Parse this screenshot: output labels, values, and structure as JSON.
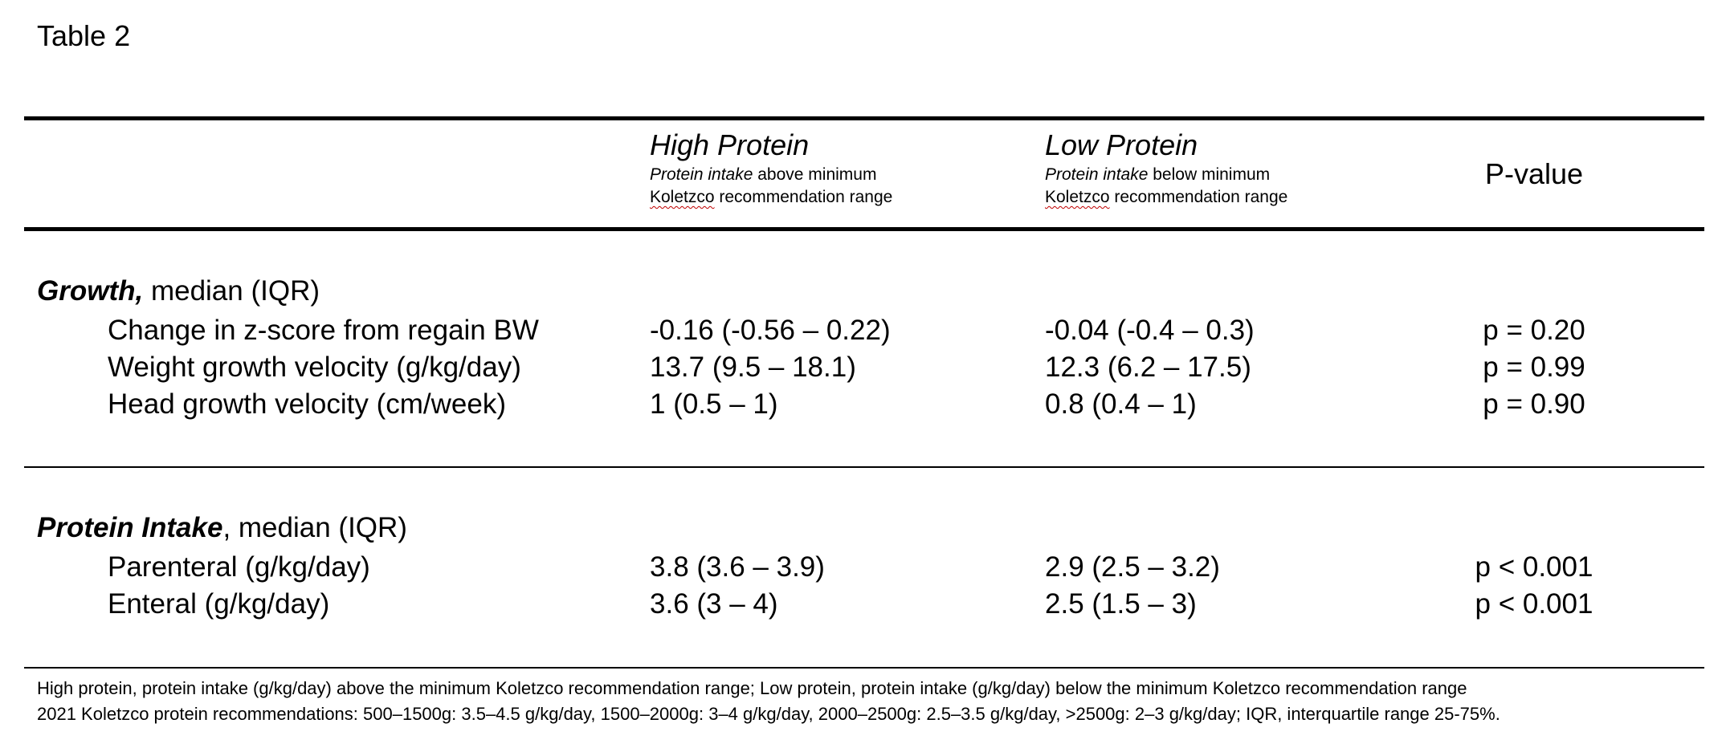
{
  "title": "Table 2",
  "columns": {
    "high": {
      "title": "High Protein",
      "sub_italic": "Protein intake",
      "sub_rest": " above minimum",
      "sub_line2_word": "Koletzco",
      "sub_line2_rest": " recommendation range"
    },
    "low": {
      "title": "Low Protein",
      "sub_italic": "Protein intake",
      "sub_rest": " below minimum",
      "sub_line2_word": "Koletzco",
      "sub_line2_rest": " recommendation range"
    },
    "pvalue": "P-value"
  },
  "growth": {
    "heading_bold": "Growth,",
    "heading_rest": " median (IQR)",
    "rows": [
      {
        "label": "Change in z-score from regain BW",
        "high": "-0.16 (-0.56 – 0.22)",
        "low": "-0.04 (-0.4 – 0.3)",
        "p": "p = 0.20"
      },
      {
        "label": "Weight growth velocity (g/kg/day)",
        "high": "13.7 (9.5 – 18.1)",
        "low": "12.3 (6.2 – 17.5)",
        "p": "p = 0.99"
      },
      {
        "label": "Head growth velocity (cm/week)",
        "high": "1 (0.5 – 1)",
        "low": "0.8 (0.4 – 1)",
        "p": "p = 0.90"
      }
    ]
  },
  "protein": {
    "heading_bold": "Protein Intake",
    "heading_rest": ", median (IQR)",
    "rows": [
      {
        "label": "Parenteral (g/kg/day)",
        "high": "3.8 (3.6 – 3.9)",
        "low": "2.9 (2.5 – 3.2)",
        "p": "p < 0.001"
      },
      {
        "label": "Enteral (g/kg/day)",
        "high": "3.6 (3 – 4)",
        "low": "2.5 (1.5 – 3)",
        "p": "p < 0.001"
      }
    ]
  },
  "footer": {
    "line1": "High protein, protein intake (g/kg/day) above the minimum Koletzco recommendation range; Low protein, protein intake (g/kg/day) below the minimum Koletzco recommendation range",
    "line2": "2021 Koletzco protein recommendations: 500–1500g: 3.5–4.5 g/kg/day, 1500–2000g: 3–4 g/kg/day, 2000–2500g: 2.5–3.5 g/kg/day, >2500g: 2–3 g/kg/day; IQR, interquartile range 25-75%."
  }
}
